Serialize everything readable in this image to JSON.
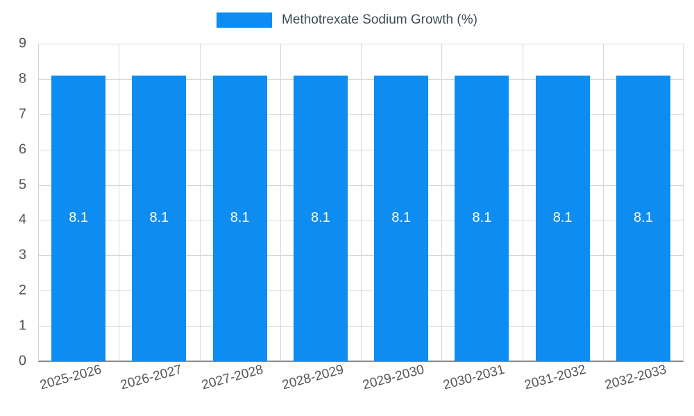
{
  "chart_data": {
    "type": "bar",
    "title": "Methotrexate Sodium Growth (%)",
    "categories": [
      "2025-2026",
      "2026-2027",
      "2027-2028",
      "2028-2029",
      "2029-2030",
      "2030-2031",
      "2031-2032",
      "2032-2033"
    ],
    "values": [
      8.1,
      8.1,
      8.1,
      8.1,
      8.1,
      8.1,
      8.1,
      8.1
    ],
    "value_labels": [
      "8.1",
      "8.1",
      "8.1",
      "8.1",
      "8.1",
      "8.1",
      "8.1",
      "8.1"
    ],
    "xlabel": "",
    "ylabel": "",
    "ylim": [
      0,
      9
    ],
    "y_ticks": [
      0,
      1,
      2,
      3,
      4,
      5,
      6,
      7,
      8,
      9
    ],
    "grid": "on",
    "legend_position": "top",
    "bar_color": "#0d8cf2",
    "value_label_color": "#ffffff",
    "axis_label_color": "#555555",
    "grid_color": "#d6d6d6"
  },
  "legend": {
    "label": "Methotrexate Sodium Growth (%)"
  }
}
